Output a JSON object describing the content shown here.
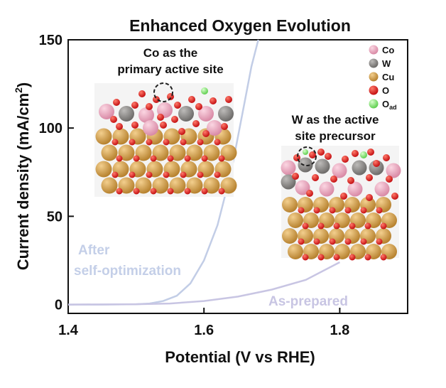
{
  "chart_data": {
    "type": "line",
    "title": "Enhanced Oxygen Evolution",
    "xlabel": "Potential (V vs RHE)",
    "ylabel": "Current density (mA/cm",
    "ylabel_sup": "2",
    "ylabel_end": ")",
    "xlim": [
      1.4,
      1.9
    ],
    "ylim": [
      -5,
      150
    ],
    "xticks": [
      1.4,
      1.6,
      1.8
    ],
    "xtick_labels": [
      "1.4",
      "1.6",
      "1.8"
    ],
    "yticks": [
      0,
      50,
      100,
      150
    ],
    "ytick_labels": [
      "0",
      "50",
      "100",
      "150"
    ],
    "series": [
      {
        "name": "After self-optimization",
        "label_line1": "After",
        "label_line2": "self-optimization",
        "color": "#c2cde6",
        "x": [
          1.4,
          1.45,
          1.5,
          1.52,
          1.54,
          1.56,
          1.58,
          1.6,
          1.62,
          1.64,
          1.65,
          1.66,
          1.67,
          1.68
        ],
        "y": [
          0,
          0,
          0.2,
          0.6,
          2,
          5,
          12,
          25,
          45,
          75,
          95,
          115,
          135,
          150
        ]
      },
      {
        "name": "As-prepared",
        "label_line1": "As-prepared",
        "color": "#c8c5e3",
        "x": [
          1.4,
          1.5,
          1.55,
          1.6,
          1.65,
          1.7,
          1.75,
          1.8
        ],
        "y": [
          0,
          0.2,
          0.6,
          2,
          4.5,
          8.5,
          14,
          24
        ]
      }
    ],
    "annotations": {
      "co_site_line1": "Co as the",
      "co_site_line2": "primary active site",
      "w_site_line1": "W as the active",
      "w_site_line2": "site precursor"
    },
    "legend": {
      "placement": "top-right",
      "items": [
        {
          "label": "Co",
          "sub": "",
          "color": "#e8a6bd"
        },
        {
          "label": "W",
          "sub": "",
          "color": "#8a8886"
        },
        {
          "label": "Cu",
          "sub": "",
          "color": "#cf9a4a"
        },
        {
          "label": "O",
          "sub": "",
          "color": "#e01f1f"
        },
        {
          "label": "O",
          "sub": "ad",
          "color": "#8ee27a"
        }
      ]
    }
  }
}
